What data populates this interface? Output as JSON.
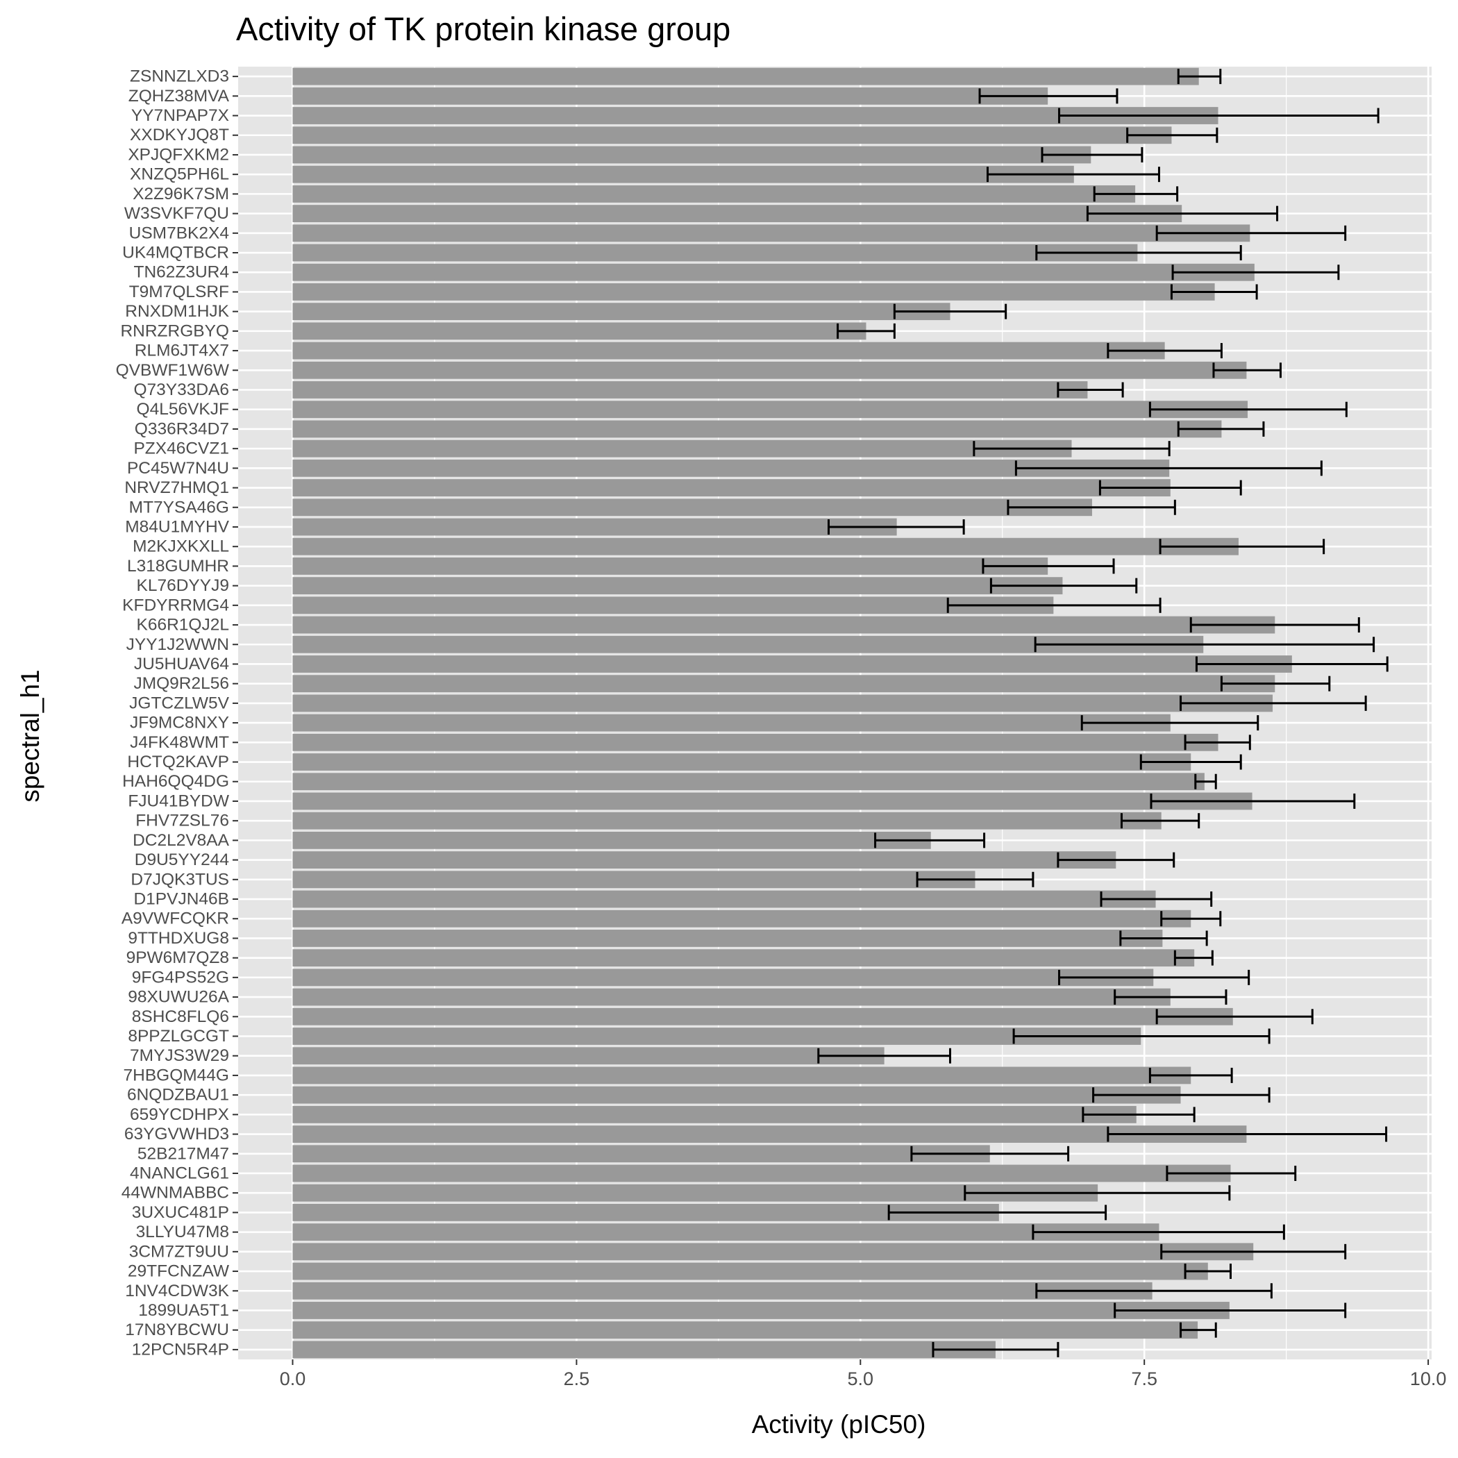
{
  "chart_data": {
    "type": "bar",
    "orientation": "horizontal",
    "title": "Activity of TK protein kinase group",
    "xlabel": "Activity (pIC50)",
    "ylabel": "spectral_h1",
    "xlim": [
      -0.48,
      10.03
    ],
    "xticks": [
      0,
      2.5,
      5,
      7.5,
      10
    ],
    "xtick_labels": [
      "0.0",
      "2.5",
      "5.0",
      "7.5",
      "10.0"
    ],
    "grid": true,
    "legend": "none",
    "colors": {
      "bar": "#999999",
      "panel": "#e5e5e5",
      "grid": "#ffffff",
      "error": "#000000",
      "text": "#4d4d4d"
    },
    "categories": [
      "ZSNNZLXD3",
      "ZQHZ38MVA",
      "YY7NPAP7X",
      "XXDKYJQ8T",
      "XPJQFXKM2",
      "XNZQ5PH6L",
      "X2Z96K7SM",
      "W3SVKF7QU",
      "USM7BK2X4",
      "UK4MQTBCR",
      "TN62Z3UR4",
      "T9M7QLSRF",
      "RNXDM1HJK",
      "RNRZRGBYQ",
      "RLM6JT4X7",
      "QVBWF1W6W",
      "Q73Y33DA6",
      "Q4L56VKJF",
      "Q336R34D7",
      "PZX46CVZ1",
      "PC45W7N4U",
      "NRVZ7HMQ1",
      "MT7YSA46G",
      "M84U1MYHV",
      "M2KJXKXLL",
      "L318GUMHR",
      "KL76DYYJ9",
      "KFDYRRMG4",
      "K66R1QJ2L",
      "JYY1J2WWN",
      "JU5HUAV64",
      "JMQ9R2L56",
      "JGTCZLW5V",
      "JF9MC8NXY",
      "J4FK48WMT",
      "HCTQ2KAVP",
      "HAH6QQ4DG",
      "FJU41BYDW",
      "FHV7ZSL76",
      "DC2L2V8AA",
      "D9U5YY244",
      "D7JQK3TUS",
      "D1PVJN46B",
      "A9VWFCQKR",
      "9TTHDXUG8",
      "9PW6M7QZ8",
      "9FG4PS52G",
      "98XUWU26A",
      "8SHC8FLQ6",
      "8PPZLGCGT",
      "7MYJS3W29",
      "7HBGQM44G",
      "6NQDZBAU1",
      "659YCDHPX",
      "63YGVWHD3",
      "52B217M47",
      "4NANCLG61",
      "44WNMABBC",
      "3UXUC481P",
      "3LLYU47M8",
      "3CM7ZT9UU",
      "29TFCNZAW",
      "1NV4CDW3K",
      "1899UA5T1",
      "17N8YBCWU",
      "12PCN5R4P"
    ],
    "values": [
      7.98,
      6.65,
      8.15,
      7.74,
      7.03,
      6.88,
      7.42,
      7.83,
      8.43,
      7.44,
      8.47,
      8.12,
      5.79,
      5.05,
      7.68,
      8.4,
      7.0,
      8.41,
      8.18,
      6.86,
      7.72,
      7.73,
      7.04,
      5.32,
      8.33,
      6.65,
      6.78,
      6.7,
      8.65,
      8.02,
      8.8,
      8.65,
      8.63,
      7.73,
      8.15,
      7.91,
      8.03,
      8.45,
      7.65,
      5.62,
      7.25,
      6.01,
      7.6,
      7.91,
      7.66,
      7.94,
      7.58,
      7.73,
      8.28,
      7.47,
      5.21,
      7.91,
      7.82,
      7.43,
      8.4,
      6.14,
      8.26,
      7.09,
      6.22,
      7.63,
      8.46,
      8.06,
      7.57,
      8.25,
      7.97,
      6.19
    ],
    "error_low": [
      7.8,
      6.05,
      6.75,
      7.35,
      6.6,
      6.12,
      7.06,
      7.0,
      7.61,
      6.55,
      7.75,
      7.74,
      5.3,
      4.8,
      7.18,
      8.11,
      6.74,
      7.55,
      7.8,
      6.0,
      6.37,
      7.11,
      6.3,
      4.72,
      7.64,
      6.08,
      6.15,
      5.77,
      7.91,
      6.54,
      7.96,
      8.18,
      7.82,
      6.95,
      7.86,
      7.47,
      7.95,
      7.56,
      7.3,
      5.13,
      6.74,
      5.5,
      7.12,
      7.65,
      7.29,
      7.77,
      6.75,
      7.24,
      7.61,
      6.35,
      4.63,
      7.55,
      7.05,
      6.96,
      7.18,
      5.45,
      7.7,
      5.92,
      5.25,
      6.52,
      7.65,
      7.86,
      6.55,
      7.24,
      7.82,
      5.64
    ],
    "error_high": [
      8.17,
      7.26,
      9.56,
      8.14,
      7.48,
      7.63,
      7.79,
      8.67,
      9.27,
      8.35,
      9.21,
      8.49,
      6.28,
      5.3,
      8.18,
      8.7,
      7.31,
      9.28,
      8.55,
      7.72,
      9.06,
      8.35,
      7.77,
      5.91,
      9.08,
      7.23,
      7.43,
      7.64,
      9.39,
      9.52,
      9.64,
      9.13,
      9.45,
      8.5,
      8.43,
      8.35,
      8.13,
      9.35,
      7.98,
      6.09,
      7.76,
      6.52,
      8.09,
      8.17,
      8.05,
      8.1,
      8.42,
      8.22,
      8.98,
      8.6,
      5.79,
      8.27,
      8.6,
      7.94,
      9.63,
      6.83,
      8.83,
      8.25,
      7.16,
      8.73,
      9.27,
      8.26,
      8.62,
      9.27,
      8.13,
      6.74
    ]
  }
}
